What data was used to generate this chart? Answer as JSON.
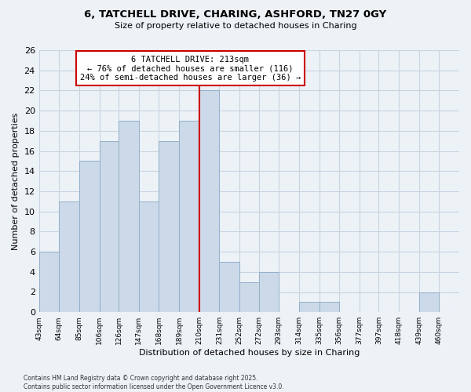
{
  "title": "6, TATCHELL DRIVE, CHARING, ASHFORD, TN27 0GY",
  "subtitle": "Size of property relative to detached houses in Charing",
  "xlabel": "Distribution of detached houses by size in Charing",
  "ylabel": "Number of detached properties",
  "bar_color": "#ccd9e8",
  "bar_edgecolor": "#93afc8",
  "bin_labels": [
    "43sqm",
    "64sqm",
    "85sqm",
    "106sqm",
    "126sqm",
    "147sqm",
    "168sqm",
    "189sqm",
    "210sqm",
    "231sqm",
    "252sqm",
    "272sqm",
    "293sqm",
    "314sqm",
    "335sqm",
    "356sqm",
    "377sqm",
    "397sqm",
    "418sqm",
    "439sqm",
    "460sqm"
  ],
  "bin_edges": [
    43,
    64,
    85,
    106,
    126,
    147,
    168,
    189,
    210,
    231,
    252,
    272,
    293,
    314,
    335,
    356,
    377,
    397,
    418,
    439,
    460
  ],
  "counts": [
    6,
    11,
    15,
    17,
    19,
    11,
    17,
    19,
    22,
    5,
    3,
    4,
    0,
    1,
    1,
    0,
    0,
    0,
    0,
    2
  ],
  "property_size": 213,
  "vline_x": 210,
  "vline_color": "#cc0000",
  "annotation_text": "6 TATCHELL DRIVE: 213sqm\n← 76% of detached houses are smaller (116)\n24% of semi-detached houses are larger (36) →",
  "annotation_box_edgecolor": "#cc0000",
  "ylim": [
    0,
    26
  ],
  "yticks": [
    0,
    2,
    4,
    6,
    8,
    10,
    12,
    14,
    16,
    18,
    20,
    22,
    24,
    26
  ],
  "background_color": "#edf2f7",
  "grid_color": "#c8d4e0",
  "footer_line1": "Contains HM Land Registry data © Crown copyright and database right 2025.",
  "footer_line2": "Contains public sector information licensed under the Open Government Licence v3.0."
}
